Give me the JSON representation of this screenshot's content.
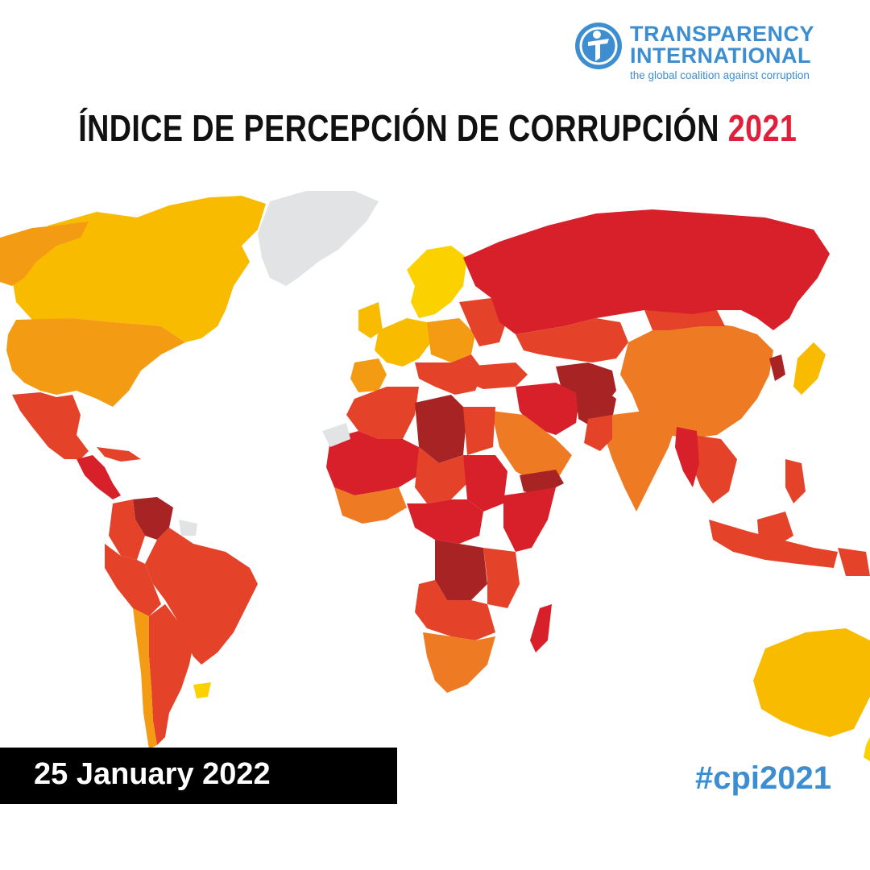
{
  "header": {
    "logo_line1": "TRANSPARENCY",
    "logo_line2": "INTERNATIONAL",
    "logo_tagline": "the global coalition against corruption",
    "title_main": "ÍNDICE DE PERCEPCIÓN DE CORRUPCIÓN",
    "title_year": "2021"
  },
  "footer": {
    "date": "25 January 2022",
    "hashtag": "#cpi2021"
  },
  "colors": {
    "brand_blue": "#3d8ed1",
    "year_red": "#e0203a",
    "scale": {
      "very_clean": "#fbd100",
      "clean": "#f8bb00",
      "moderate": "#f39b12",
      "orange": "#ee7b23",
      "red_orange": "#e5422a",
      "red": "#d8202b",
      "dark_red": "#a82424",
      "no_data": "#e2e3e5"
    }
  }
}
